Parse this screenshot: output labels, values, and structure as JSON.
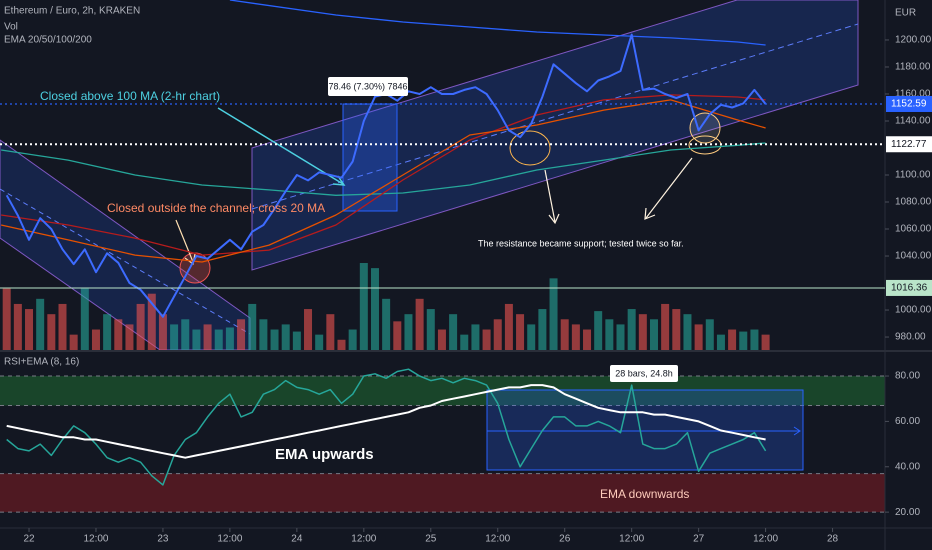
{
  "chart_data": [
    {
      "type": "line",
      "title": "Ethereum / Euro, 2h, KRAKEN",
      "indicator": "EMA 20/50/100/200",
      "unit": "EUR",
      "x": [
        -4,
        -2,
        0,
        2,
        4,
        6,
        8,
        10,
        12,
        14,
        16,
        18,
        20,
        22,
        24,
        26,
        28,
        30,
        32,
        34,
        36,
        38,
        40,
        42,
        44,
        46,
        48,
        50,
        52,
        54,
        56,
        58,
        60,
        62,
        64,
        66,
        68,
        70,
        72,
        74,
        76,
        78,
        80,
        82,
        84,
        86,
        88,
        90,
        92,
        94,
        96,
        98,
        100,
        102,
        104,
        106,
        108,
        110,
        112,
        114,
        116,
        118,
        120,
        122,
        124,
        126,
        128,
        130,
        132
      ],
      "series": [
        {
          "color": "#3d6bff",
          "values": [
            1085,
            1070,
            1052,
            1068,
            1060,
            1045,
            1034,
            1045,
            1028,
            1042,
            1035,
            1020,
            1015,
            1005,
            995,
            1010,
            1025,
            1040,
            1038,
            1045,
            1052,
            1045,
            1058,
            1063,
            1075,
            1088,
            1100,
            1096,
            1102,
            1100,
            1098,
            1110,
            1140,
            1158,
            1160,
            1155,
            1162,
            1160,
            1165,
            1160,
            1160,
            1163,
            1165,
            1160,
            1148,
            1133,
            1128,
            1138,
            1158,
            1182,
            1175,
            1168,
            1162,
            1170,
            1173,
            1177,
            1204,
            1163,
            1164,
            1160,
            1157,
            1160,
            1133,
            1145,
            1152,
            1150,
            1153,
            1163,
            1152.59
          ]
        }
      ],
      "ma_series": [
        {
          "color": "#26a69a",
          "x": [
            -5,
            7,
            19,
            31,
            43,
            55,
            67,
            79,
            91,
            103,
            115,
            127,
            132
          ],
          "values": [
            1118.5,
            1111,
            1100,
            1092.6,
            1089,
            1085,
            1086.7,
            1092.6,
            1103.7,
            1111,
            1118.5,
            1122,
            1123.7
          ]
        },
        {
          "color": "#b71c1c",
          "x": [
            -5,
            7,
            19,
            31,
            43,
            55,
            67,
            79,
            91,
            103,
            115,
            127,
            132
          ],
          "values": [
            1070.4,
            1063,
            1053.3,
            1040.7,
            1044.4,
            1063,
            1096.3,
            1125.9,
            1144.4,
            1155.6,
            1159.3,
            1157.8,
            1155.6
          ]
        },
        {
          "color": "#e65100",
          "x": [
            -5,
            7,
            19,
            31,
            43,
            55,
            67,
            79,
            91,
            103,
            115,
            127,
            132
          ],
          "values": [
            1063,
            1051.9,
            1040.7,
            1035.6,
            1048.1,
            1070.4,
            1100,
            1129.6,
            1137,
            1148.1,
            1155.6,
            1140.7,
            1134.8
          ]
        },
        {
          "color": "#2962ff",
          "x": [
            36,
            55,
            67,
            79,
            91,
            103,
            115,
            127,
            132
          ],
          "values": [
            1229.6,
            1218.5,
            1213.3,
            1209.6,
            1205.9,
            1203.7,
            1201.5,
            1198.5,
            1196.3
          ]
        }
      ],
      "xlim": [
        -5.2,
        153.4
      ],
      "ylim": [
        970.4,
        1229.6
      ],
      "yticks": [
        {
          "value": 980,
          "label": "980.00"
        },
        {
          "value": 1000,
          "label": "1000.00"
        },
        {
          "value": 1040,
          "label": "1040.00"
        },
        {
          "value": 1060,
          "label": "1060.00"
        },
        {
          "value": 1080,
          "label": "1080.00"
        },
        {
          "value": 1100,
          "label": "1100.00"
        },
        {
          "value": 1140,
          "label": "1140.00"
        },
        {
          "value": 1160,
          "label": "1160.00"
        },
        {
          "value": 1180,
          "label": "1180.00"
        },
        {
          "value": 1200,
          "label": "1200.00"
        }
      ],
      "price_lines": [
        {
          "value": 1152.59,
          "color": "#2962ff",
          "text_color": "#ffffff",
          "style": "dotted"
        },
        {
          "value": 1122.77,
          "color": "#ffffff",
          "text_color": "#131722",
          "style": "dotted"
        },
        {
          "value": 1016.36,
          "color": "#b9e4c9",
          "text_color": "#131722",
          "style": "solid"
        }
      ],
      "annotations": [
        "Closed above 100 MA (2-hr chart)",
        "Closed outside the channel; cross 20 MA",
        "The resistance became support; tested twice so far.",
        "78.46 (7.30%) 7846"
      ]
    },
    {
      "type": "bar",
      "title": "Vol",
      "up_color": "#26a69a",
      "down_color": "#ef5350",
      "values": [
        60,
        45,
        40,
        50,
        35,
        45,
        15,
        60,
        20,
        35,
        30,
        25,
        45,
        55,
        35,
        25,
        30,
        20,
        25,
        20,
        22,
        30,
        45,
        30,
        20,
        25,
        18,
        40,
        15,
        35,
        10,
        20,
        85,
        80,
        50,
        28,
        35,
        50,
        40,
        20,
        35,
        15,
        25,
        20,
        30,
        45,
        35,
        25,
        40,
        70,
        30,
        25,
        20,
        38,
        30,
        25,
        40,
        35,
        30,
        45,
        40,
        35,
        25,
        30,
        15,
        20,
        18,
        20,
        15
      ]
    },
    {
      "type": "line",
      "title": "RSI+EMA (8, 16)",
      "series": [
        {
          "color": "#26a69a",
          "values": [
            52,
            48,
            47,
            50,
            45,
            52,
            58,
            55,
            50,
            44,
            42,
            44,
            42,
            36,
            32,
            45,
            52,
            55,
            62,
            68,
            72,
            62,
            64,
            72,
            74,
            78,
            75,
            74,
            72,
            74,
            68,
            72,
            80,
            81,
            79,
            82,
            83,
            80,
            78,
            79,
            77,
            79,
            78,
            76,
            68,
            52,
            40,
            48,
            56,
            62,
            62,
            58,
            58,
            60,
            58,
            55,
            76,
            50,
            48,
            48,
            50,
            55,
            38,
            46,
            48,
            50,
            52,
            55,
            47
          ]
        },
        {
          "color": "#ffffff",
          "values": [
            58,
            57,
            56,
            55,
            54,
            53,
            53,
            52,
            52,
            51,
            50,
            49,
            48,
            47,
            46,
            45,
            44,
            45,
            46,
            47,
            48,
            49,
            50,
            51,
            52,
            53,
            54,
            55,
            56,
            57,
            58,
            59,
            60,
            61,
            62,
            63,
            64,
            66,
            67,
            69,
            70,
            71,
            72,
            73,
            74,
            75,
            75,
            76,
            76,
            75,
            72,
            70,
            68,
            66,
            65,
            64,
            64,
            64,
            63,
            63,
            62,
            61,
            60,
            58,
            56,
            55,
            54,
            53,
            52
          ]
        }
      ],
      "ylim": [
        13,
        90.6
      ],
      "yticks": [
        {
          "value": 20,
          "label": "20.00"
        },
        {
          "value": 40,
          "label": "40.00"
        },
        {
          "value": 60,
          "label": "60.00"
        },
        {
          "value": 80,
          "label": "80.00"
        }
      ],
      "zones": [
        {
          "from": 67,
          "to": 80,
          "color": "#1b4d2b"
        },
        {
          "from": 20,
          "to": 37,
          "color": "#5a1a22"
        }
      ],
      "levels": [
        80,
        67,
        37,
        20
      ],
      "xticks": [
        {
          "value": 0,
          "label": "22"
        },
        {
          "value": 12,
          "label": "12:00"
        },
        {
          "value": 24,
          "label": "23"
        },
        {
          "value": 36,
          "label": "12:00"
        },
        {
          "value": 48,
          "label": "24"
        },
        {
          "value": 60,
          "label": "12:00"
        },
        {
          "value": 72,
          "label": "25"
        },
        {
          "value": 84,
          "label": "12:00"
        },
        {
          "value": 96,
          "label": "26"
        },
        {
          "value": 108,
          "label": "12:00"
        },
        {
          "value": 120,
          "label": "27"
        },
        {
          "value": 132,
          "label": "12:00"
        },
        {
          "value": 144,
          "label": "28"
        }
      ],
      "annotations": [
        "EMA upwards",
        "EMA downwards",
        "28 bars, 24.8h"
      ]
    }
  ]
}
